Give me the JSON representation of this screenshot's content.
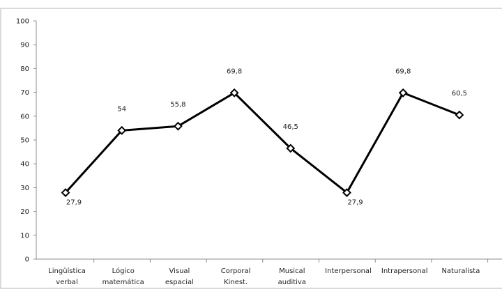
{
  "chart_data": {
    "type": "line",
    "categories": [
      [
        "Lingüística",
        "verbal"
      ],
      [
        "Lógico",
        "matemática"
      ],
      [
        "Visual",
        "espacial"
      ],
      [
        "Corporal",
        "Kinest."
      ],
      [
        "Musical",
        "auditiva"
      ],
      [
        "Interpersonal"
      ],
      [
        "Intrapersonal"
      ],
      [
        "Naturalista"
      ]
    ],
    "values": [
      27.9,
      54,
      55.8,
      69.8,
      46.5,
      27.9,
      69.8,
      60.5
    ],
    "data_labels": [
      "27,9",
      "54",
      "55,8",
      "69,8",
      "46,5",
      "27,9",
      "69,8",
      "60,5"
    ],
    "yticks": [
      "0",
      "10",
      "20",
      "30",
      "40",
      "50",
      "60",
      "70",
      "80",
      "90",
      "100"
    ],
    "ylim": [
      0,
      100
    ],
    "grid": false,
    "legend": "none",
    "line_color": "#000000",
    "marker": "diamond"
  }
}
